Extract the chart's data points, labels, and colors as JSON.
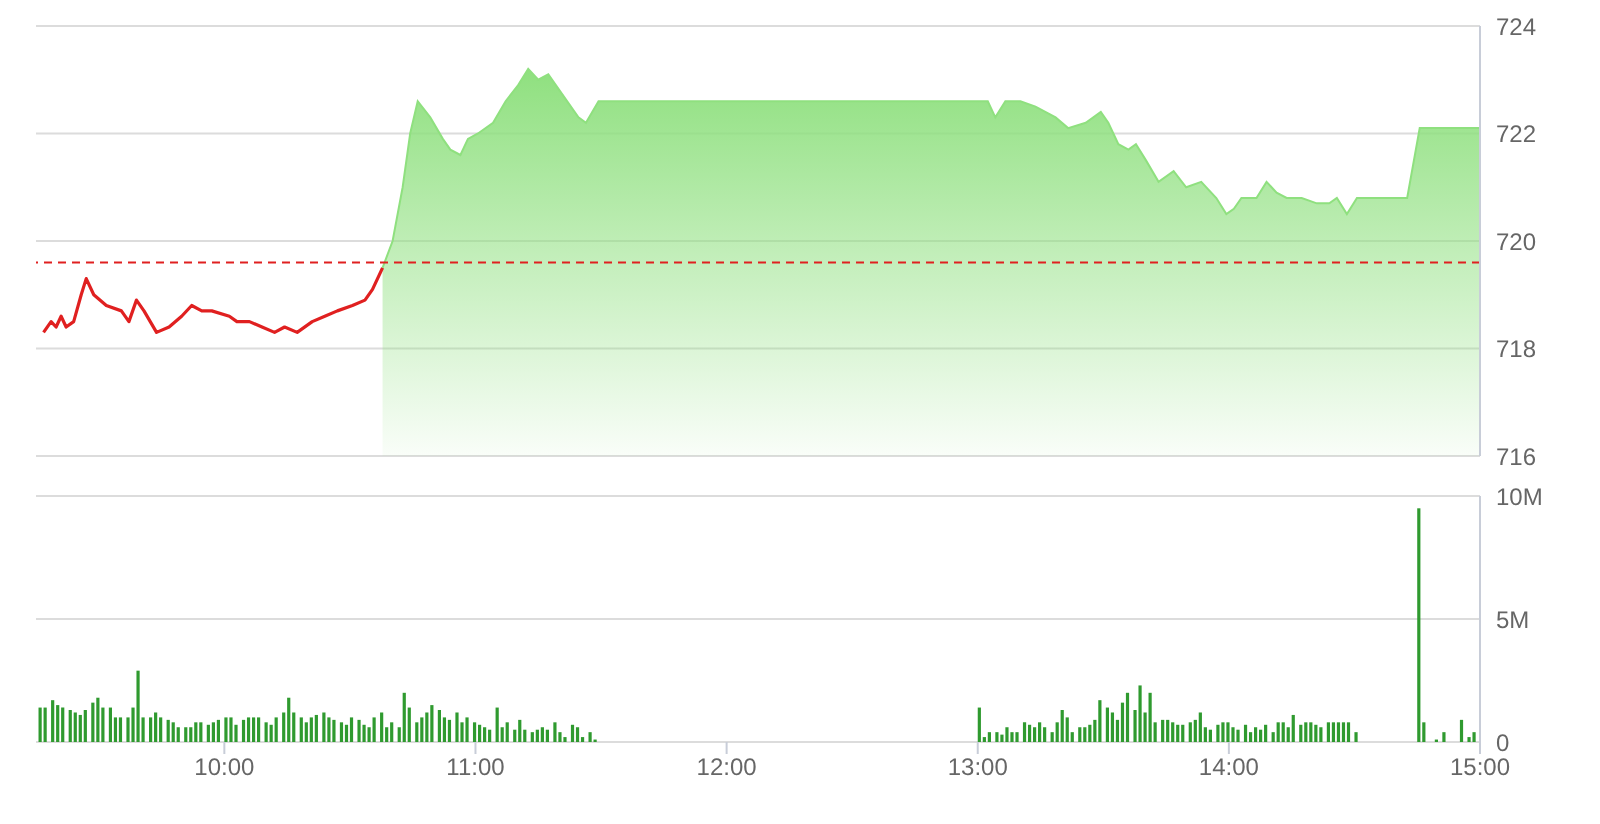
{
  "chart_data": [
    {
      "type": "area",
      "xlim": [
        9.25,
        15
      ],
      "ylim": [
        716,
        724
      ],
      "yticks": [
        716,
        718,
        720,
        722,
        724
      ],
      "grid": "y",
      "tick_labels": "y",
      "ref_lines": [
        {
          "axis": "y",
          "value": 719.6,
          "color": "#e02020",
          "line_style": "dashed"
        }
      ],
      "series": [
        {
          "type": "line",
          "color": "#e02020",
          "x": [
            9.28,
            9.31,
            9.33,
            9.35,
            9.37,
            9.4,
            9.43,
            9.45,
            9.48,
            9.53,
            9.59,
            9.62,
            9.65,
            9.68,
            9.73,
            9.78,
            9.83,
            9.87,
            9.91,
            9.95,
            10.02,
            10.05,
            10.1,
            10.15,
            10.2,
            10.24,
            10.29,
            10.35,
            10.4,
            10.45,
            10.51,
            10.56,
            10.59,
            10.63
          ],
          "values": [
            718.3,
            718.5,
            718.4,
            718.6,
            718.4,
            718.5,
            719.0,
            719.3,
            719.0,
            718.8,
            718.7,
            718.5,
            718.9,
            718.7,
            718.3,
            718.4,
            718.6,
            718.8,
            718.7,
            718.7,
            718.6,
            718.5,
            718.5,
            718.4,
            718.3,
            718.4,
            718.3,
            718.5,
            718.6,
            718.7,
            718.8,
            718.9,
            719.1,
            719.5
          ]
        },
        {
          "color": "#8fe07f",
          "x": [
            10.63,
            10.67,
            10.71,
            10.74,
            10.77,
            10.82,
            10.87,
            10.9,
            10.94,
            10.97,
            11.01,
            11.07,
            11.12,
            11.17,
            11.21,
            11.25,
            11.29,
            11.35,
            11.41,
            11.44,
            11.49,
            13.04,
            13.07,
            13.11,
            13.17,
            13.23,
            13.31,
            13.36,
            13.43,
            13.49,
            13.52,
            13.56,
            13.6,
            13.63,
            13.67,
            13.72,
            13.78,
            13.83,
            13.89,
            13.95,
            13.99,
            14.02,
            14.05,
            14.11,
            14.15,
            14.19,
            14.23,
            14.29,
            14.35,
            14.4,
            14.43,
            14.47,
            14.51,
            14.71,
            14.76,
            15.0
          ],
          "values": [
            719.5,
            720.0,
            721.0,
            722.0,
            722.6,
            722.3,
            721.9,
            721.7,
            721.6,
            721.9,
            722.0,
            722.2,
            722.6,
            722.9,
            723.2,
            723.0,
            723.1,
            722.7,
            722.3,
            722.2,
            722.6,
            722.6,
            722.3,
            722.6,
            722.6,
            722.5,
            722.3,
            722.1,
            722.2,
            722.4,
            722.2,
            721.8,
            721.7,
            721.8,
            721.5,
            721.1,
            721.3,
            721.0,
            721.1,
            720.8,
            720.5,
            720.6,
            720.8,
            720.8,
            721.1,
            720.9,
            720.8,
            720.8,
            720.7,
            720.7,
            720.8,
            720.5,
            720.8,
            720.8,
            722.1,
            722.1
          ]
        }
      ]
    },
    {
      "type": "bar",
      "xlim": [
        9.25,
        15
      ],
      "xticks": [
        {
          "value": 10,
          "label": "10:00"
        },
        {
          "value": 11,
          "label": "11:00"
        },
        {
          "value": 12,
          "label": "12:00"
        },
        {
          "value": 13,
          "label": "13:00"
        },
        {
          "value": 14,
          "label": "14:00"
        },
        {
          "value": 15,
          "label": "15:00"
        }
      ],
      "ylim": [
        0,
        10
      ],
      "yticks": [
        0,
        {
          "value": 5,
          "label": "5M"
        },
        {
          "value": 10,
          "label": "10M"
        }
      ],
      "grid": "y",
      "series": [
        {
          "color": "#2f9a2f",
          "x": [
            9.27,
            9.29,
            9.32,
            9.34,
            9.36,
            9.39,
            9.41,
            9.43,
            9.45,
            9.48,
            9.5,
            9.52,
            9.55,
            9.57,
            9.59,
            9.62,
            9.64,
            9.66,
            9.68,
            9.71,
            9.73,
            9.75,
            9.78,
            9.8,
            9.82,
            9.85,
            9.87,
            9.89,
            9.91,
            9.94,
            9.96,
            9.98,
            10.01,
            10.03,
            10.05,
            10.08,
            10.1,
            10.12,
            10.14,
            10.17,
            10.19,
            10.21,
            10.24,
            10.26,
            10.28,
            10.31,
            10.33,
            10.35,
            10.37,
            10.4,
            10.42,
            10.44,
            10.47,
            10.49,
            10.51,
            10.54,
            10.56,
            10.58,
            10.6,
            10.63,
            10.65,
            10.67,
            10.7,
            10.72,
            10.74,
            10.77,
            10.79,
            10.81,
            10.83,
            10.86,
            10.88,
            10.9,
            10.93,
            10.95,
            10.97,
            11.0,
            11.02,
            11.04,
            11.06,
            11.09,
            11.11,
            11.13,
            11.16,
            11.18,
            11.2,
            11.23,
            11.25,
            11.27,
            11.29,
            11.32,
            11.34,
            11.36,
            11.39,
            11.41,
            11.43,
            11.46,
            11.48,
            13.01,
            13.03,
            13.05,
            13.08,
            13.1,
            13.12,
            13.14,
            13.16,
            13.19,
            13.21,
            13.23,
            13.25,
            13.27,
            13.3,
            13.32,
            13.34,
            13.36,
            13.38,
            13.41,
            13.43,
            13.45,
            13.47,
            13.49,
            13.52,
            13.54,
            13.56,
            13.58,
            13.6,
            13.63,
            13.65,
            13.67,
            13.69,
            13.71,
            13.74,
            13.76,
            13.78,
            13.8,
            13.82,
            13.85,
            13.87,
            13.89,
            13.91,
            13.93,
            13.96,
            13.98,
            14.0,
            14.02,
            14.04,
            14.07,
            14.09,
            14.11,
            14.13,
            14.15,
            14.18,
            14.2,
            14.22,
            14.24,
            14.26,
            14.29,
            14.31,
            14.33,
            14.35,
            14.37,
            14.4,
            14.42,
            14.44,
            14.46,
            14.48,
            14.51,
            14.76,
            14.78,
            14.83,
            14.86,
            14.93,
            14.96,
            14.98
          ],
          "values": [
            1.4,
            1.4,
            1.7,
            1.5,
            1.4,
            1.3,
            1.2,
            1.1,
            1.3,
            1.6,
            1.8,
            1.4,
            1.4,
            1.0,
            1.0,
            1.0,
            1.4,
            2.9,
            1.0,
            1.0,
            1.2,
            1.0,
            0.9,
            0.8,
            0.6,
            0.6,
            0.6,
            0.8,
            0.8,
            0.7,
            0.8,
            0.9,
            1.0,
            1.0,
            0.7,
            0.9,
            1.0,
            1.0,
            1.0,
            0.8,
            0.7,
            1.0,
            1.2,
            1.8,
            1.2,
            1.0,
            0.8,
            1.0,
            1.1,
            1.2,
            1.0,
            0.9,
            0.8,
            0.7,
            1.0,
            0.9,
            0.7,
            0.6,
            1.0,
            1.2,
            0.6,
            0.8,
            0.6,
            2.0,
            1.4,
            0.8,
            1.0,
            1.2,
            1.5,
            1.3,
            1.0,
            0.9,
            1.2,
            0.8,
            1.0,
            0.8,
            0.7,
            0.6,
            0.5,
            1.4,
            0.6,
            0.8,
            0.5,
            0.9,
            0.5,
            0.4,
            0.5,
            0.6,
            0.5,
            0.8,
            0.4,
            0.2,
            0.7,
            0.6,
            0.2,
            0.4,
            0.1,
            1.4,
            0.2,
            0.4,
            0.4,
            0.3,
            0.6,
            0.4,
            0.4,
            0.8,
            0.7,
            0.6,
            0.8,
            0.6,
            0.4,
            0.8,
            1.3,
            1.0,
            0.4,
            0.6,
            0.6,
            0.7,
            0.9,
            1.7,
            1.4,
            1.2,
            0.9,
            1.6,
            2.0,
            1.3,
            2.3,
            1.2,
            2.0,
            0.8,
            0.9,
            0.9,
            0.8,
            0.7,
            0.7,
            0.8,
            0.9,
            1.2,
            0.6,
            0.5,
            0.7,
            0.8,
            0.8,
            0.6,
            0.5,
            0.7,
            0.4,
            0.6,
            0.5,
            0.7,
            0.4,
            0.8,
            0.8,
            0.6,
            1.1,
            0.7,
            0.8,
            0.8,
            0.7,
            0.6,
            0.8,
            0.8,
            0.8,
            0.8,
            0.8,
            0.4,
            9.5,
            0.8,
            0.1,
            0.4,
            0.9,
            0.2,
            0.4
          ]
        }
      ]
    }
  ]
}
